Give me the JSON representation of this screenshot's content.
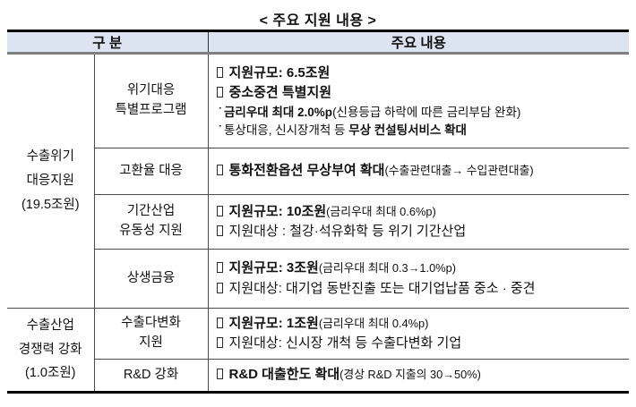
{
  "page": {
    "title": "< 주요 지원 내용 >"
  },
  "colors": {
    "header_bg": "#dce4f1",
    "border_outer": "#000000",
    "border_header_bottom": "#7f7f7f",
    "grid": "#4a4a4a",
    "text": "#111111"
  },
  "bullets": {
    "dot": "˙",
    "box": "□"
  },
  "table": {
    "header": {
      "category": "구 분",
      "content": "주요 내용"
    },
    "rows": [
      {
        "group": {
          "rowspan": 4,
          "lines": [
            "수출위기",
            "대응지원",
            "(19.5조원)"
          ]
        },
        "category_lines": [
          "위기대응",
          "특별프로그램"
        ],
        "content_lines": [
          {
            "bullet": "box",
            "style": "main",
            "segments": [
              {
                "text": "지원규모: 6.5조원",
                "bold": true
              }
            ]
          },
          {
            "bullet": "box",
            "style": "main",
            "segments": [
              {
                "text": "중소중견 특별지원",
                "bold": true
              }
            ]
          },
          {
            "bullet": "dot",
            "style": "sub",
            "segments": [
              {
                "text": "금리우대 최대 2.0%p",
                "bold": true
              },
              {
                "text": "(신용등급 하락에 따른 금리부담 완화)",
                "bold": false
              }
            ]
          },
          {
            "bullet": "dot",
            "style": "sub",
            "segments": [
              {
                "text": "통상대응, 신시장개척 등 ",
                "bold": false
              },
              {
                "text": "무상 컨설팅서비스 확대",
                "bold": true
              }
            ]
          }
        ]
      },
      {
        "category_lines": [
          "고환율 대응"
        ],
        "content_lines": [
          {
            "bullet": "box",
            "style": "main",
            "segments": [
              {
                "text": "통화전환옵션 무상부여 확대",
                "bold": true
              },
              {
                "text": "(수출관련대출→ 수입관련대출)",
                "bold": false,
                "small": true
              }
            ]
          }
        ]
      },
      {
        "category_lines": [
          "기간산업",
          "유동성 지원"
        ],
        "content_lines": [
          {
            "bullet": "box",
            "style": "main",
            "segments": [
              {
                "text": "지원규모: 10조원",
                "bold": true
              },
              {
                "text": "(금리우대 최대 0.6%p)",
                "bold": false,
                "small": true
              }
            ]
          },
          {
            "bullet": "box",
            "style": "main",
            "segments": [
              {
                "text": "지원대상 : 철강·석유화학 등 위기 기간산업",
                "bold": false
              }
            ]
          }
        ]
      },
      {
        "category_lines": [
          "상생금융"
        ],
        "content_lines": [
          {
            "bullet": "box",
            "style": "main",
            "segments": [
              {
                "text": "지원규모: 3조원",
                "bold": true
              },
              {
                "text": "(금리우대 최대 0.3→1.0%p)",
                "bold": false,
                "small": true
              }
            ]
          },
          {
            "bullet": "box",
            "style": "main",
            "segments": [
              {
                "text": "지원대상: 대기업 동반진출 또는 대기업납품 중소 · 중견",
                "bold": false
              }
            ]
          }
        ]
      },
      {
        "group": {
          "rowspan": 2,
          "lines": [
            "수출산업",
            "경쟁력 강화",
            "(1.0조원)"
          ]
        },
        "category_lines": [
          "수출다변화",
          "지원"
        ],
        "content_lines": [
          {
            "bullet": "box",
            "style": "main",
            "segments": [
              {
                "text": "지원규모: 1조원",
                "bold": true
              },
              {
                "text": "(금리우대 최대 0.4%p)",
                "bold": false,
                "small": true
              }
            ]
          },
          {
            "bullet": "box",
            "style": "main",
            "segments": [
              {
                "text": "지원대상: 신시장 개척 등 수출다변화 기업",
                "bold": false
              }
            ]
          }
        ]
      },
      {
        "category_lines": [
          "R&D 강화"
        ],
        "content_lines": [
          {
            "bullet": "box",
            "style": "main",
            "segments": [
              {
                "text": "R&D 대출한도 확대",
                "bold": true
              },
              {
                "text": "(경상 R&D 지출의 30→50%)",
                "bold": false,
                "small": true
              }
            ]
          }
        ]
      }
    ]
  }
}
